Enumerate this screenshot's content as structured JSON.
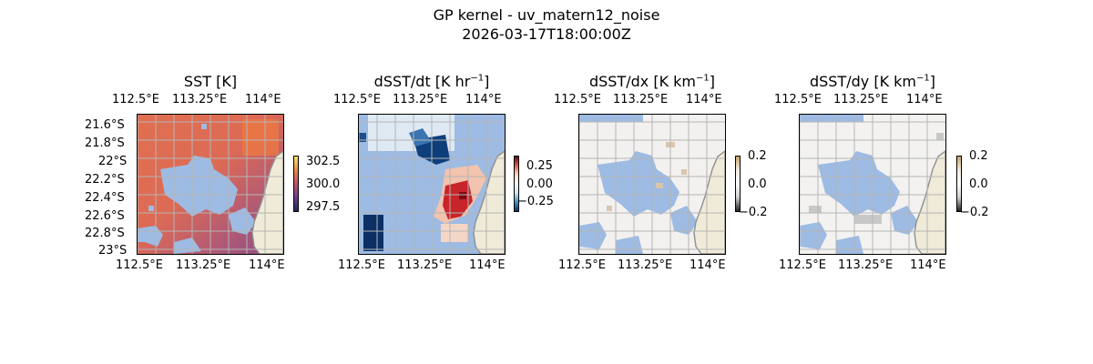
{
  "figure": {
    "title_line1": "GP kernel - uv_matern12_noise",
    "title_line2": "2026-03-17T18:00:00Z"
  },
  "colors": {
    "land": "#efebd8",
    "coast": "#8f8f8f",
    "gridline": "#b5b5b5",
    "mask": "#9dbbe3"
  },
  "chart_data": [
    {
      "type": "heatmap",
      "title": "SST [K]",
      "x_ticks": [
        "112.5°E",
        "113.25°E",
        "114°E"
      ],
      "y_ticks": [
        "21.6°S",
        "21.8°S",
        "22°S",
        "22.2°S",
        "22.4°S",
        "22.6°S",
        "22.8°S",
        "23°S"
      ],
      "xlim": [
        112.5,
        114.0
      ],
      "ylim": [
        -23.0,
        -21.55
      ],
      "colormap": "thermal",
      "colorbar": {
        "ticks": [
          "302.5",
          "300.0",
          "297.5"
        ],
        "range": [
          297.0,
          303.0
        ]
      }
    },
    {
      "type": "heatmap",
      "title": "dSST/dt [K hr−1]",
      "x_ticks": [
        "112.5°E",
        "113.25°E",
        "114°E"
      ],
      "xlim": [
        112.5,
        114.0
      ],
      "ylim": [
        -23.0,
        -21.55
      ],
      "colormap": "diverging blue-red",
      "colorbar": {
        "ticks": [
          "0.25",
          "0.00",
          "−0.25"
        ],
        "range": [
          -0.4,
          0.4
        ]
      }
    },
    {
      "type": "heatmap",
      "title": "dSST/dx [K km−1]",
      "x_ticks": [
        "112.5°E",
        "113.25°E",
        "114°E"
      ],
      "xlim": [
        112.5,
        114.0
      ],
      "ylim": [
        -23.0,
        -21.55
      ],
      "colormap": "diverging gray-brown",
      "colorbar": {
        "ticks": [
          "0.2",
          "0.0",
          "−0.2"
        ],
        "range": [
          -0.2,
          0.2
        ]
      }
    },
    {
      "type": "heatmap",
      "title": "dSST/dy [K km−1]",
      "x_ticks": [
        "112.5°E",
        "113.25°E",
        "114°E"
      ],
      "xlim": [
        112.5,
        114.0
      ],
      "ylim": [
        -23.0,
        -21.55
      ],
      "colormap": "diverging gray-brown",
      "colorbar": {
        "ticks": [
          "0.2",
          "0.0",
          "−0.2"
        ],
        "range": [
          -0.2,
          0.2
        ]
      }
    }
  ]
}
